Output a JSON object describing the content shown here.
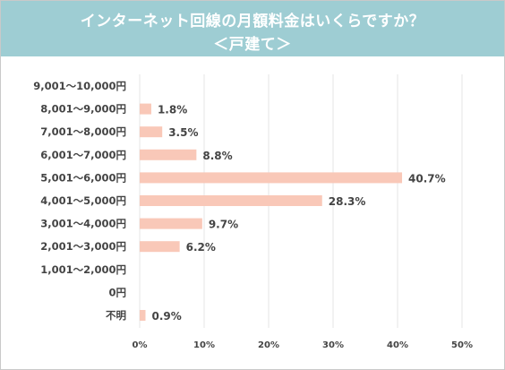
{
  "title": {
    "line1": "インターネット回線の月額料金はいくらですか？",
    "line2": "＜戸建て＞"
  },
  "colors": {
    "header_bg": "#9ecdd3",
    "bar": "#f9c8b8",
    "grid": "#e6e6e6",
    "text": "#444444"
  },
  "chart_data": {
    "type": "bar",
    "orientation": "horizontal",
    "categories": [
      "9,001～10,000円",
      "8,001～9,000円",
      "7,001～8,000円",
      "6,001～7,000円",
      "5,001～6,000円",
      "4,001～5,000円",
      "3,001～4,000円",
      "2,001～3,000円",
      "1,001～2,000円",
      "0円",
      "不明"
    ],
    "values": [
      null,
      1.8,
      3.5,
      8.8,
      40.7,
      28.3,
      9.7,
      6.2,
      null,
      null,
      0.9
    ],
    "value_labels": [
      "",
      "1.8%",
      "3.5%",
      "8.8%",
      "40.7%",
      "28.3%",
      "9.7%",
      "6.2%",
      "",
      "",
      "0.9%"
    ],
    "xlim": [
      0,
      50
    ],
    "x_ticks": [
      "0%",
      "10%",
      "20%",
      "30%",
      "40%",
      "50%"
    ],
    "grid": true
  }
}
